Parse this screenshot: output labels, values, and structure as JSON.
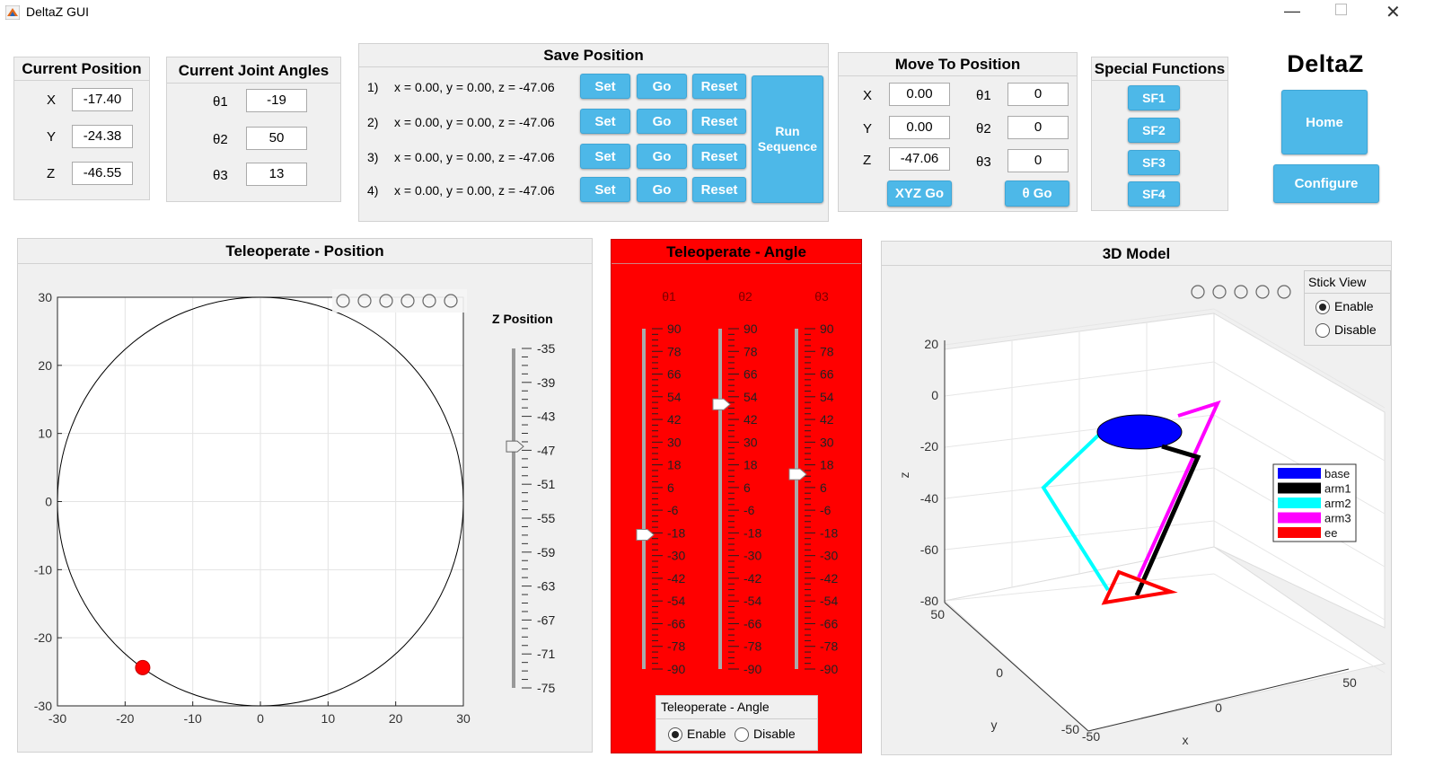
{
  "window": {
    "title": "DeltaZ GUI"
  },
  "current_position": {
    "title": "Current Position",
    "x_label": "X",
    "y_label": "Y",
    "z_label": "Z",
    "x": "-17.40",
    "y": "-24.38",
    "z": "-46.55"
  },
  "current_joint_angles": {
    "title": "Current Joint Angles",
    "t1_label": "θ1",
    "t2_label": "θ2",
    "t3_label": "θ3",
    "t1": "-19",
    "t2": "50",
    "t3": "13"
  },
  "save_position": {
    "title": "Save Position",
    "rows": [
      {
        "index": "1)",
        "text": "x = 0.00, y = 0.00, z = -47.06"
      },
      {
        "index": "2)",
        "text": "x = 0.00, y = 0.00, z = -47.06"
      },
      {
        "index": "3)",
        "text": "x = 0.00, y = 0.00, z = -47.06"
      },
      {
        "index": "4)",
        "text": "x = 0.00, y = 0.00, z = -47.06"
      }
    ],
    "set_label": "Set",
    "go_label": "Go",
    "reset_label": "Reset",
    "run_label": "Run Sequence"
  },
  "move_to_position": {
    "title": "Move To Position",
    "x_label": "X",
    "y_label": "Y",
    "z_label": "Z",
    "x": "0.00",
    "y": "0.00",
    "z": "-47.06",
    "t1_label": "θ1",
    "t2_label": "θ2",
    "t3_label": "θ3",
    "t1": "0",
    "t2": "0",
    "t3": "0",
    "xyz_go": "XYZ Go",
    "theta_go": "θ Go"
  },
  "special_functions": {
    "title": "Special Functions",
    "buttons": [
      "SF1",
      "SF2",
      "SF3",
      "SF4"
    ]
  },
  "brand": {
    "logo": "DeltaZ",
    "home": "Home",
    "configure": "Configure"
  },
  "teleop_position": {
    "title": "Teleoperate - Position",
    "z_slider_title": "Z Position",
    "z_ticks": [
      "-35",
      "-39",
      "-43",
      "-47",
      "-51",
      "-55",
      "-59",
      "-63",
      "-67",
      "-71",
      "-75"
    ],
    "z_value": -46.55,
    "z_range": [
      -75,
      -35
    ],
    "x_ticks": [
      "-30",
      "-20",
      "-10",
      "0",
      "10",
      "20",
      "30"
    ],
    "y_ticks": [
      "30",
      "20",
      "10",
      "0",
      "-10",
      "-20",
      "-30"
    ],
    "point": {
      "x": -17.4,
      "y": -24.38
    },
    "circle_radius": 30
  },
  "teleop_angle": {
    "title": "Teleoperate - Angle",
    "slider_labels": [
      "θ1",
      "θ2",
      "θ3"
    ],
    "ticks": [
      "90",
      "78",
      "66",
      "54",
      "42",
      "30",
      "18",
      "6",
      "-6",
      "-18",
      "-30",
      "-42",
      "-54",
      "-66",
      "-78",
      "-90"
    ],
    "values": [
      -19,
      50,
      13
    ],
    "range": [
      -90,
      90
    ],
    "mode_group": {
      "title": "Teleoperate - Angle",
      "enable": "Enable",
      "disable": "Disable",
      "selected": "Enable"
    },
    "bg_color": "#ff0000"
  },
  "model_3d": {
    "title": "3D Model",
    "stick_view": {
      "title": "Stick View",
      "enable": "Enable",
      "disable": "Disable",
      "selected": "Enable"
    },
    "z_ticks": [
      "20",
      "0",
      "-20",
      "-40",
      "-60",
      "-80"
    ],
    "y_ticks": [
      "50",
      "0",
      "-50"
    ],
    "x_ticks": [
      "-50",
      "0",
      "50"
    ],
    "xlabel": "x",
    "ylabel": "y",
    "zlabel": "z",
    "legend": [
      {
        "name": "base",
        "color": "#0000ff"
      },
      {
        "name": "arm1",
        "color": "#000000"
      },
      {
        "name": "arm2",
        "color": "#00ffff"
      },
      {
        "name": "arm3",
        "color": "#ff00ff"
      },
      {
        "name": "ee",
        "color": "#ff0000"
      }
    ]
  }
}
